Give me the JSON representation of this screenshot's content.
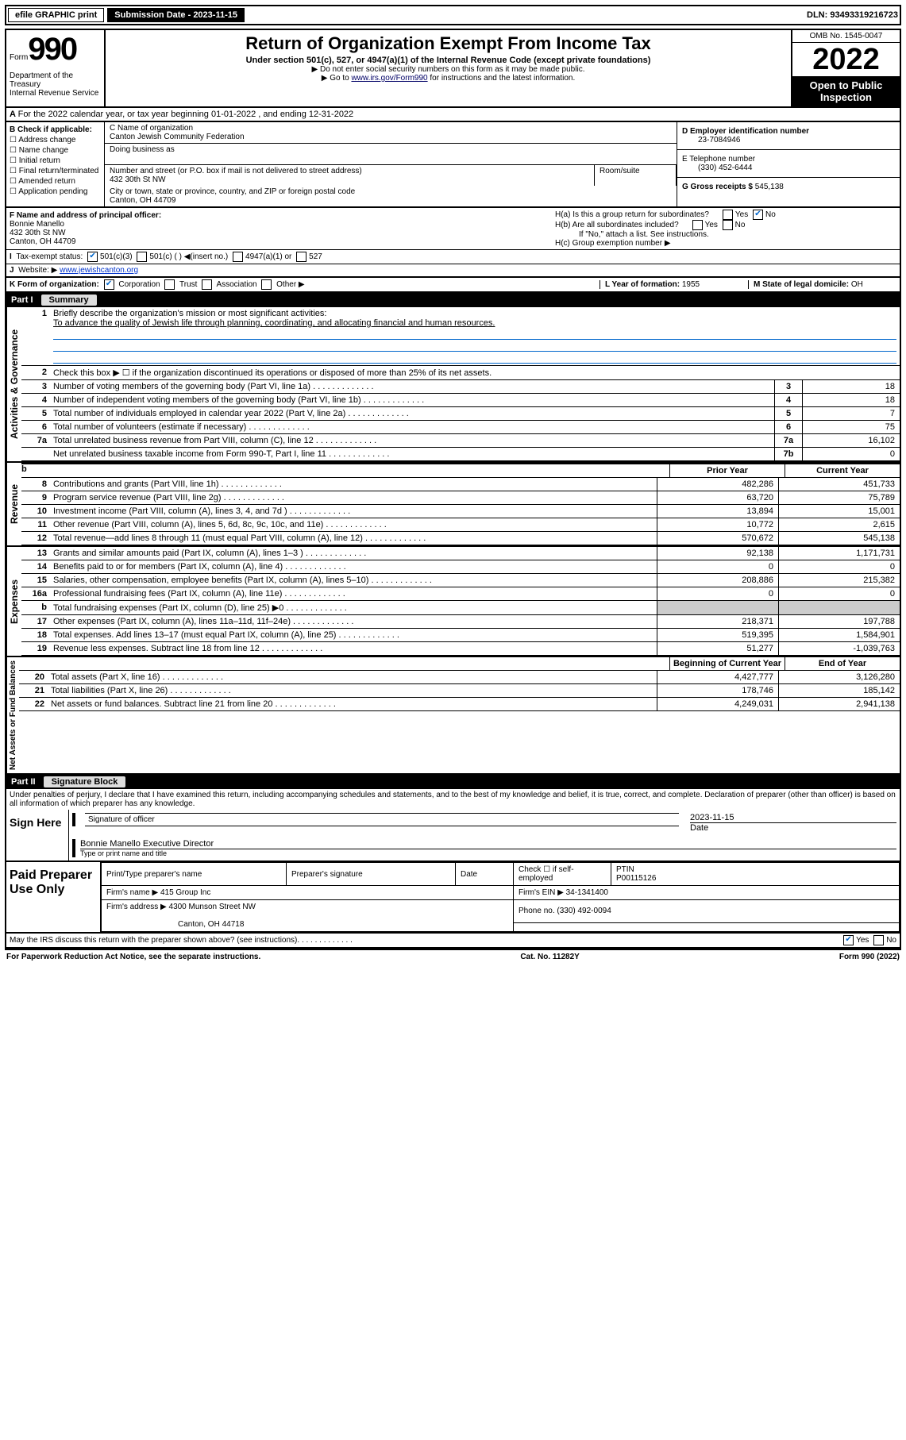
{
  "topbar": {
    "efile": "efile GRAPHIC print",
    "subdate_label": "Submission Date - 2023-11-15",
    "dln": "DLN: 93493319216723"
  },
  "header": {
    "form": "Form",
    "num": "990",
    "dept": "Department of the Treasury\nInternal Revenue Service",
    "title": "Return of Organization Exempt From Income Tax",
    "sub": "Under section 501(c), 527, or 4947(a)(1) of the Internal Revenue Code (except private foundations)",
    "sub2": "▶ Do not enter social security numbers on this form as it may be made public.",
    "sub3": "▶ Go to www.irs.gov/Form990 for instructions and the latest information.",
    "omb": "OMB No. 1545-0047",
    "year": "2022",
    "open": "Open to Public Inspection"
  },
  "a": {
    "taxyear": "For the 2022 calendar year, or tax year beginning 01-01-2022  , and ending 12-31-2022"
  },
  "b": {
    "label": "B Check if applicable:",
    "opts": [
      "Address change",
      "Name change",
      "Initial return",
      "Final return/terminated",
      "Amended return",
      "Application pending"
    ]
  },
  "c": {
    "label": "C Name of organization",
    "name": "Canton Jewish Community Federation",
    "dba": "Doing business as",
    "street_label": "Number and street (or P.O. box if mail is not delivered to street address)",
    "street": "432 30th St NW",
    "room": "Room/suite",
    "city_label": "City or town, state or province, country, and ZIP or foreign postal code",
    "city": "Canton, OH  44709"
  },
  "d": {
    "label": "D Employer identification number",
    "val": "23-7084946"
  },
  "e": {
    "label": "E Telephone number",
    "val": "(330) 452-6444"
  },
  "g": {
    "label": "G Gross receipts $",
    "val": "545,138"
  },
  "f": {
    "label": "F  Name and address of principal officer:",
    "name": "Bonnie Manello",
    "street": "432 30th St NW",
    "city": "Canton, OH  44709"
  },
  "h": {
    "a": "H(a)  Is this a group return for subordinates?",
    "b": "H(b)  Are all subordinates included?",
    "b2": "If \"No,\" attach a list. See instructions.",
    "c": "H(c)  Group exemption number ▶"
  },
  "i": {
    "label": "Tax-exempt status:",
    "c3": "501(c)(3)",
    "c": "501(c) (  ) ◀(insert no.)",
    "a1": "4947(a)(1) or",
    "s527": "527"
  },
  "j": {
    "label": "Website: ▶",
    "val": "www.jewishcanton.org"
  },
  "k": {
    "label": "K Form of organization:",
    "corp": "Corporation",
    "trust": "Trust",
    "assoc": "Association",
    "other": "Other ▶"
  },
  "l": {
    "label": "L Year of formation:",
    "val": "1955"
  },
  "m": {
    "label": "M State of legal domicile:",
    "val": "OH"
  },
  "partI": {
    "lbl": "Part I",
    "txt": "Summary"
  },
  "summary": {
    "l1": "Briefly describe the organization's mission or most significant activities:",
    "l1v": "To advance the quality of Jewish life through planning, coordinating, and allocating financial and human resources.",
    "l2": "Check this box ▶ ☐  if the organization discontinued its operations or disposed of more than 25% of its net assets.",
    "rows": [
      {
        "n": "3",
        "d": "Number of voting members of the governing body (Part VI, line 1a)",
        "box": "3",
        "v": "18"
      },
      {
        "n": "4",
        "d": "Number of independent voting members of the governing body (Part VI, line 1b)",
        "box": "4",
        "v": "18"
      },
      {
        "n": "5",
        "d": "Total number of individuals employed in calendar year 2022 (Part V, line 2a)",
        "box": "5",
        "v": "7"
      },
      {
        "n": "6",
        "d": "Total number of volunteers (estimate if necessary)",
        "box": "6",
        "v": "75"
      },
      {
        "n": "7a",
        "d": "Total unrelated business revenue from Part VIII, column (C), line 12",
        "box": "7a",
        "v": "16,102"
      },
      {
        "n": "",
        "d": "Net unrelated business taxable income from Form 990-T, Part I, line 11",
        "box": "7b",
        "v": "0"
      }
    ],
    "hdr_prior": "Prior Year",
    "hdr_curr": "Current Year",
    "rev": [
      {
        "n": "8",
        "d": "Contributions and grants (Part VIII, line 1h)",
        "p": "482,286",
        "c": "451,733"
      },
      {
        "n": "9",
        "d": "Program service revenue (Part VIII, line 2g)",
        "p": "63,720",
        "c": "75,789"
      },
      {
        "n": "10",
        "d": "Investment income (Part VIII, column (A), lines 3, 4, and 7d )",
        "p": "13,894",
        "c": "15,001"
      },
      {
        "n": "11",
        "d": "Other revenue (Part VIII, column (A), lines 5, 6d, 8c, 9c, 10c, and 11e)",
        "p": "10,772",
        "c": "2,615"
      },
      {
        "n": "12",
        "d": "Total revenue—add lines 8 through 11 (must equal Part VIII, column (A), line 12)",
        "p": "570,672",
        "c": "545,138"
      }
    ],
    "exp": [
      {
        "n": "13",
        "d": "Grants and similar amounts paid (Part IX, column (A), lines 1–3 )",
        "p": "92,138",
        "c": "1,171,731"
      },
      {
        "n": "14",
        "d": "Benefits paid to or for members (Part IX, column (A), line 4)",
        "p": "0",
        "c": "0"
      },
      {
        "n": "15",
        "d": "Salaries, other compensation, employee benefits (Part IX, column (A), lines 5–10)",
        "p": "208,886",
        "c": "215,382"
      },
      {
        "n": "16a",
        "d": "Professional fundraising fees (Part IX, column (A), line 11e)",
        "p": "0",
        "c": "0"
      },
      {
        "n": "b",
        "d": "Total fundraising expenses (Part IX, column (D), line 25) ▶0",
        "p": "",
        "c": ""
      },
      {
        "n": "17",
        "d": "Other expenses (Part IX, column (A), lines 11a–11d, 11f–24e)",
        "p": "218,371",
        "c": "197,788"
      },
      {
        "n": "18",
        "d": "Total expenses. Add lines 13–17 (must equal Part IX, column (A), line 25)",
        "p": "519,395",
        "c": "1,584,901"
      },
      {
        "n": "19",
        "d": "Revenue less expenses. Subtract line 18 from line 12",
        "p": "51,277",
        "c": "-1,039,763"
      }
    ],
    "hdr_begin": "Beginning of Current Year",
    "hdr_end": "End of Year",
    "net": [
      {
        "n": "20",
        "d": "Total assets (Part X, line 16)",
        "p": "4,427,777",
        "c": "3,126,280"
      },
      {
        "n": "21",
        "d": "Total liabilities (Part X, line 26)",
        "p": "178,746",
        "c": "185,142"
      },
      {
        "n": "22",
        "d": "Net assets or fund balances. Subtract line 21 from line 20",
        "p": "4,249,031",
        "c": "2,941,138"
      }
    ]
  },
  "partII": {
    "lbl": "Part II",
    "txt": "Signature Block"
  },
  "penalty": "Under penalties of perjury, I declare that I have examined this return, including accompanying schedules and statements, and to the best of my knowledge and belief, it is true, correct, and complete. Declaration of preparer (other than officer) is based on all information of which preparer has any knowledge.",
  "sign": {
    "here": "Sign Here",
    "sig": "Signature of officer",
    "date": "Date",
    "dateval": "2023-11-15",
    "name": "Bonnie Manello Executive Director",
    "typ": "Type or print name and title"
  },
  "paid": {
    "lbl": "Paid Preparer Use Only",
    "h": [
      "Print/Type preparer's name",
      "Preparer's signature",
      "Date",
      "Check ☐ if self-employed",
      "PTIN"
    ],
    "ptin": "P00115126",
    "firm": "Firm's name   ▶ 415 Group Inc",
    "ein": "Firm's EIN ▶ 34-1341400",
    "addr": "Firm's address ▶ 4300 Munson Street NW",
    "phone": "Phone no. (330) 492-0094",
    "addr2": "Canton, OH  44718"
  },
  "discuss": "May the IRS discuss this return with the preparer shown above? (see instructions)",
  "footer": {
    "left": "For Paperwork Reduction Act Notice, see the separate instructions.",
    "mid": "Cat. No. 11282Y",
    "right": "Form 990 (2022)"
  },
  "labels": {
    "gov": "Activities & Governance",
    "rev": "Revenue",
    "exp": "Expenses",
    "net": "Net Assets or Fund Balances"
  }
}
